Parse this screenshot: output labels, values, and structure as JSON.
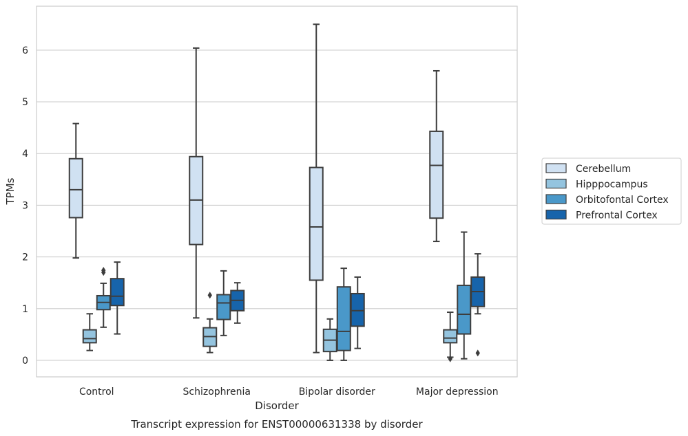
{
  "chart_data": {
    "type": "box",
    "title": "Transcript expression for ENST00000631338 by disorder",
    "xlabel": "Disorder",
    "ylabel": "TPMs",
    "ylim": [
      -0.32,
      6.85
    ],
    "yticks": [
      0,
      1,
      2,
      3,
      4,
      5,
      6
    ],
    "grid": "horizontal",
    "legend_position": "right",
    "categories": [
      "Control",
      "Schizophrenia",
      "Bipolar disorder",
      "Major depression"
    ],
    "series": [
      {
        "name": "Cerebellum",
        "color": "#d0e1f2",
        "boxes": [
          {
            "whislo": 1.98,
            "q1": 2.76,
            "med": 3.3,
            "q3": 3.9,
            "whishi": 4.58,
            "fliers": []
          },
          {
            "whislo": 0.82,
            "q1": 2.24,
            "med": 3.1,
            "q3": 3.94,
            "whishi": 6.04,
            "fliers": []
          },
          {
            "whislo": 0.15,
            "q1": 1.55,
            "med": 2.58,
            "q3": 3.73,
            "whishi": 6.5,
            "fliers": []
          },
          {
            "whislo": 2.3,
            "q1": 2.75,
            "med": 3.77,
            "q3": 4.43,
            "whishi": 5.6,
            "fliers": []
          }
        ]
      },
      {
        "name": "Hipppocampus",
        "color": "#94c4df",
        "boxes": [
          {
            "whislo": 0.19,
            "q1": 0.34,
            "med": 0.42,
            "q3": 0.59,
            "whishi": 0.9,
            "fliers": []
          },
          {
            "whislo": 0.15,
            "q1": 0.27,
            "med": 0.46,
            "q3": 0.63,
            "whishi": 0.8,
            "fliers": [
              1.26
            ]
          },
          {
            "whislo": 0.0,
            "q1": 0.17,
            "med": 0.39,
            "q3": 0.6,
            "whishi": 0.8,
            "fliers": []
          },
          {
            "whislo": 0.06,
            "q1": 0.34,
            "med": 0.43,
            "q3": 0.59,
            "whishi": 0.93,
            "fliers": [
              0.03
            ]
          }
        ]
      },
      {
        "name": "Orbitofontal Cortex",
        "color": "#4a98c9",
        "boxes": [
          {
            "whislo": 0.64,
            "q1": 0.98,
            "med": 1.12,
            "q3": 1.25,
            "whishi": 1.49,
            "fliers": [
              1.7,
              1.74
            ]
          },
          {
            "whislo": 0.48,
            "q1": 0.79,
            "med": 1.11,
            "q3": 1.27,
            "whishi": 1.73,
            "fliers": []
          },
          {
            "whislo": 0.0,
            "q1": 0.19,
            "med": 0.56,
            "q3": 1.42,
            "whishi": 1.78,
            "fliers": []
          },
          {
            "whislo": 0.03,
            "q1": 0.51,
            "med": 0.89,
            "q3": 1.45,
            "whishi": 2.48,
            "fliers": []
          }
        ]
      },
      {
        "name": "Prefrontal Cortex",
        "color": "#1764ab",
        "boxes": [
          {
            "whislo": 0.51,
            "q1": 1.06,
            "med": 1.24,
            "q3": 1.58,
            "whishi": 1.9,
            "fliers": []
          },
          {
            "whislo": 0.72,
            "q1": 0.96,
            "med": 1.16,
            "q3": 1.35,
            "whishi": 1.5,
            "fliers": []
          },
          {
            "whislo": 0.23,
            "q1": 0.66,
            "med": 0.96,
            "q3": 1.29,
            "whishi": 1.61,
            "fliers": []
          },
          {
            "whislo": 0.9,
            "q1": 1.04,
            "med": 1.33,
            "q3": 1.61,
            "whishi": 2.06,
            "fliers": [
              0.14
            ]
          }
        ]
      }
    ]
  }
}
